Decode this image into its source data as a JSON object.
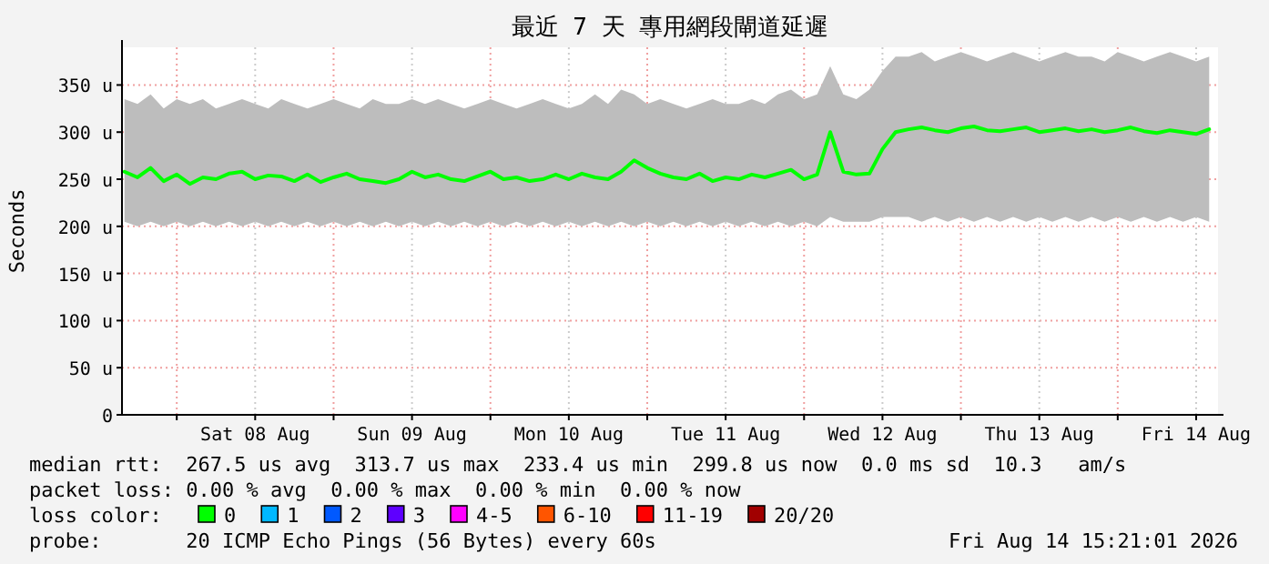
{
  "chart_data": {
    "type": "line",
    "title": "最近 7 天 專用網段閘道延遲",
    "ylabel": "Seconds",
    "legend_title": "loss color:",
    "legend": "bottom",
    "grid": true,
    "x": [
      "2026-08-07T16:00",
      "2026-08-07T18:00",
      "2026-08-07T20:00",
      "2026-08-07T22:00",
      "2026-08-08T00:00",
      "2026-08-08T02:00",
      "2026-08-08T04:00",
      "2026-08-08T06:00",
      "2026-08-08T08:00",
      "2026-08-08T10:00",
      "2026-08-08T12:00",
      "2026-08-08T14:00",
      "2026-08-08T16:00",
      "2026-08-08T18:00",
      "2026-08-08T20:00",
      "2026-08-08T22:00",
      "2026-08-09T00:00",
      "2026-08-09T02:00",
      "2026-08-09T04:00",
      "2026-08-09T06:00",
      "2026-08-09T08:00",
      "2026-08-09T10:00",
      "2026-08-09T12:00",
      "2026-08-09T14:00",
      "2026-08-09T16:00",
      "2026-08-09T18:00",
      "2026-08-09T20:00",
      "2026-08-09T22:00",
      "2026-08-10T00:00",
      "2026-08-10T02:00",
      "2026-08-10T04:00",
      "2026-08-10T06:00",
      "2026-08-10T08:00",
      "2026-08-10T10:00",
      "2026-08-10T12:00",
      "2026-08-10T14:00",
      "2026-08-10T16:00",
      "2026-08-10T18:00",
      "2026-08-10T20:00",
      "2026-08-10T22:00",
      "2026-08-11T00:00",
      "2026-08-11T02:00",
      "2026-08-11T04:00",
      "2026-08-11T06:00",
      "2026-08-11T08:00",
      "2026-08-11T10:00",
      "2026-08-11T12:00",
      "2026-08-11T14:00",
      "2026-08-11T16:00",
      "2026-08-11T18:00",
      "2026-08-11T20:00",
      "2026-08-11T22:00",
      "2026-08-12T00:00",
      "2026-08-12T02:00",
      "2026-08-12T04:00",
      "2026-08-12T06:00",
      "2026-08-12T08:00",
      "2026-08-12T10:00",
      "2026-08-12T12:00",
      "2026-08-12T14:00",
      "2026-08-12T16:00",
      "2026-08-12T18:00",
      "2026-08-12T20:00",
      "2026-08-12T22:00",
      "2026-08-13T00:00",
      "2026-08-13T02:00",
      "2026-08-13T04:00",
      "2026-08-13T06:00",
      "2026-08-13T08:00",
      "2026-08-13T10:00",
      "2026-08-13T12:00",
      "2026-08-13T14:00",
      "2026-08-13T16:00",
      "2026-08-13T18:00",
      "2026-08-13T20:00",
      "2026-08-13T22:00",
      "2026-08-14T00:00",
      "2026-08-14T02:00",
      "2026-08-14T04:00",
      "2026-08-14T06:00",
      "2026-08-14T08:00",
      "2026-08-14T10:00",
      "2026-08-14T12:00",
      "2026-08-14T14:00"
    ],
    "xlim": [
      "2026-08-07T15:37",
      "2026-08-14T15:21"
    ],
    "xticks": [
      {
        "value": "2026-08-08T00:00",
        "label": null
      },
      {
        "value": "2026-08-08T12:00",
        "label": "Sat 08 Aug"
      },
      {
        "value": "2026-08-09T00:00",
        "label": null
      },
      {
        "value": "2026-08-09T12:00",
        "label": "Sun 09 Aug"
      },
      {
        "value": "2026-08-10T00:00",
        "label": null
      },
      {
        "value": "2026-08-10T12:00",
        "label": "Mon 10 Aug"
      },
      {
        "value": "2026-08-11T00:00",
        "label": null
      },
      {
        "value": "2026-08-11T12:00",
        "label": "Tue 11 Aug"
      },
      {
        "value": "2026-08-12T00:00",
        "label": null
      },
      {
        "value": "2026-08-12T12:00",
        "label": "Wed 12 Aug"
      },
      {
        "value": "2026-08-13T00:00",
        "label": null
      },
      {
        "value": "2026-08-13T12:00",
        "label": "Thu 13 Aug"
      },
      {
        "value": "2026-08-14T00:00",
        "label": null
      },
      {
        "value": "2026-08-14T12:00",
        "label": "Fri 14 Aug"
      }
    ],
    "ylim": [
      0,
      390
    ],
    "yticks": [
      0,
      {
        "value": 50,
        "label": "50 u"
      },
      {
        "value": 100,
        "label": "100 u"
      },
      {
        "value": 150,
        "label": "150 u"
      },
      {
        "value": 200,
        "label": "200 u"
      },
      {
        "value": 250,
        "label": "250 u"
      },
      {
        "value": 300,
        "label": "300 u"
      },
      {
        "value": 350,
        "label": "350 u"
      }
    ],
    "series": [
      {
        "name": "0",
        "color": "#00ff00",
        "values": [
          258,
          252,
          262,
          248,
          255,
          245,
          252,
          250,
          256,
          258,
          250,
          254,
          253,
          248,
          255,
          247,
          252,
          256,
          250,
          248,
          246,
          250,
          258,
          252,
          255,
          250,
          248,
          253,
          258,
          250,
          252,
          248,
          250,
          255,
          250,
          256,
          252,
          250,
          258,
          270,
          262,
          256,
          252,
          250,
          256,
          248,
          252,
          250,
          255,
          252,
          256,
          260,
          250,
          255,
          300,
          258,
          255,
          256,
          282,
          300,
          303,
          305,
          302,
          300,
          304,
          306,
          302,
          301,
          303,
          305,
          300,
          302,
          304,
          301,
          303,
          300,
          302,
          305,
          301,
          299,
          302,
          300,
          298,
          303
        ],
        "lower": [
          205,
          200,
          205,
          200,
          205,
          200,
          205,
          200,
          205,
          200,
          205,
          200,
          205,
          200,
          205,
          200,
          205,
          200,
          205,
          200,
          205,
          200,
          205,
          200,
          205,
          200,
          205,
          200,
          205,
          200,
          205,
          200,
          205,
          200,
          205,
          200,
          205,
          200,
          205,
          200,
          205,
          200,
          205,
          200,
          205,
          200,
          205,
          200,
          205,
          200,
          205,
          200,
          205,
          200,
          210,
          205,
          205,
          205,
          210,
          210,
          210,
          205,
          210,
          205,
          210,
          205,
          210,
          205,
          210,
          205,
          210,
          205,
          210,
          205,
          210,
          205,
          210,
          205,
          210,
          205,
          210,
          205,
          210,
          205
        ],
        "upper": [
          335,
          330,
          340,
          325,
          335,
          330,
          335,
          325,
          330,
          335,
          330,
          325,
          335,
          330,
          325,
          330,
          335,
          330,
          325,
          335,
          330,
          330,
          335,
          330,
          335,
          330,
          325,
          330,
          335,
          330,
          325,
          330,
          335,
          330,
          325,
          330,
          340,
          330,
          345,
          340,
          330,
          335,
          330,
          325,
          330,
          335,
          330,
          330,
          335,
          330,
          340,
          345,
          335,
          340,
          370,
          340,
          335,
          345,
          365,
          380,
          380,
          385,
          375,
          380,
          385,
          380,
          375,
          380,
          385,
          380,
          375,
          380,
          385,
          380,
          380,
          375,
          385,
          380,
          375,
          380,
          385,
          380,
          375,
          380
        ]
      },
      {
        "name": "1",
        "color": "#00b8ff",
        "values": [
          null,
          null,
          null,
          null,
          null,
          null,
          null,
          null,
          null,
          null,
          null,
          null,
          null,
          null,
          null,
          null,
          null,
          null,
          null,
          null,
          null,
          null,
          null,
          null,
          null,
          null,
          null,
          null,
          null,
          null,
          null,
          null,
          null,
          null,
          null,
          null,
          null,
          null,
          null,
          null,
          null,
          null,
          null,
          null,
          null,
          null,
          null,
          null,
          null,
          null,
          null,
          null,
          null,
          null,
          null,
          null,
          null,
          null,
          null,
          null,
          null,
          null,
          null,
          null,
          null,
          null,
          null,
          null,
          null,
          null,
          null,
          null,
          null,
          null,
          null,
          null,
          null,
          null,
          null,
          null,
          null,
          null,
          null,
          null
        ]
      },
      {
        "name": "2",
        "color": "#0059ff",
        "values": [
          null,
          null,
          null,
          null,
          null,
          null,
          null,
          null,
          null,
          null,
          null,
          null,
          null,
          null,
          null,
          null,
          null,
          null,
          null,
          null,
          null,
          null,
          null,
          null,
          null,
          null,
          null,
          null,
          null,
          null,
          null,
          null,
          null,
          null,
          null,
          null,
          null,
          null,
          null,
          null,
          null,
          null,
          null,
          null,
          null,
          null,
          null,
          null,
          null,
          null,
          null,
          null,
          null,
          null,
          null,
          null,
          null,
          null,
          null,
          null,
          null,
          null,
          null,
          null,
          null,
          null,
          null,
          null,
          null,
          null,
          null,
          null,
          null,
          null,
          null,
          null,
          null,
          null,
          null,
          null,
          null,
          null,
          null,
          null
        ]
      },
      {
        "name": "3",
        "color": "#5e00ff",
        "values": [
          null,
          null,
          null,
          null,
          null,
          null,
          null,
          null,
          null,
          null,
          null,
          null,
          null,
          null,
          null,
          null,
          null,
          null,
          null,
          null,
          null,
          null,
          null,
          null,
          null,
          null,
          null,
          null,
          null,
          null,
          null,
          null,
          null,
          null,
          null,
          null,
          null,
          null,
          null,
          null,
          null,
          null,
          null,
          null,
          null,
          null,
          null,
          null,
          null,
          null,
          null,
          null,
          null,
          null,
          null,
          null,
          null,
          null,
          null,
          null,
          null,
          null,
          null,
          null,
          null,
          null,
          null,
          null,
          null,
          null,
          null,
          null,
          null,
          null,
          null,
          null,
          null,
          null,
          null,
          null,
          null,
          null,
          null,
          null
        ]
      },
      {
        "name": "4-5",
        "color": "#ff00ff",
        "values": [
          null,
          null,
          null,
          null,
          null,
          null,
          null,
          null,
          null,
          null,
          null,
          null,
          null,
          null,
          null,
          null,
          null,
          null,
          null,
          null,
          null,
          null,
          null,
          null,
          null,
          null,
          null,
          null,
          null,
          null,
          null,
          null,
          null,
          null,
          null,
          null,
          null,
          null,
          null,
          null,
          null,
          null,
          null,
          null,
          null,
          null,
          null,
          null,
          null,
          null,
          null,
          null,
          null,
          null,
          null,
          null,
          null,
          null,
          null,
          null,
          null,
          null,
          null,
          null,
          null,
          null,
          null,
          null,
          null,
          null,
          null,
          null,
          null,
          null,
          null,
          null,
          null,
          null,
          null,
          null,
          null,
          null,
          null,
          null
        ]
      },
      {
        "name": "6-10",
        "color": "#ff5500",
        "values": [
          null,
          null,
          null,
          null,
          null,
          null,
          null,
          null,
          null,
          null,
          null,
          null,
          null,
          null,
          null,
          null,
          null,
          null,
          null,
          null,
          null,
          null,
          null,
          null,
          null,
          null,
          null,
          null,
          null,
          null,
          null,
          null,
          null,
          null,
          null,
          null,
          null,
          null,
          null,
          null,
          null,
          null,
          null,
          null,
          null,
          null,
          null,
          null,
          null,
          null,
          null,
          null,
          null,
          null,
          null,
          null,
          null,
          null,
          null,
          null,
          null,
          null,
          null,
          null,
          null,
          null,
          null,
          null,
          null,
          null,
          null,
          null,
          null,
          null,
          null,
          null,
          null,
          null,
          null,
          null,
          null,
          null,
          null,
          null
        ]
      },
      {
        "name": "11-19",
        "color": "#ff0000",
        "values": [
          null,
          null,
          null,
          null,
          null,
          null,
          null,
          null,
          null,
          null,
          null,
          null,
          null,
          null,
          null,
          null,
          null,
          null,
          null,
          null,
          null,
          null,
          null,
          null,
          null,
          null,
          null,
          null,
          null,
          null,
          null,
          null,
          null,
          null,
          null,
          null,
          null,
          null,
          null,
          null,
          null,
          null,
          null,
          null,
          null,
          null,
          null,
          null,
          null,
          null,
          null,
          null,
          null,
          null,
          null,
          null,
          null,
          null,
          null,
          null,
          null,
          null,
          null,
          null,
          null,
          null,
          null,
          null,
          null,
          null,
          null,
          null,
          null,
          null,
          null,
          null,
          null,
          null,
          null,
          null,
          null,
          null,
          null,
          null
        ]
      },
      {
        "name": "20/20",
        "color": "#a10000",
        "values": [
          null,
          null,
          null,
          null,
          null,
          null,
          null,
          null,
          null,
          null,
          null,
          null,
          null,
          null,
          null,
          null,
          null,
          null,
          null,
          null,
          null,
          null,
          null,
          null,
          null,
          null,
          null,
          null,
          null,
          null,
          null,
          null,
          null,
          null,
          null,
          null,
          null,
          null,
          null,
          null,
          null,
          null,
          null,
          null,
          null,
          null,
          null,
          null,
          null,
          null,
          null,
          null,
          null,
          null,
          null,
          null,
          null,
          null,
          null,
          null,
          null,
          null,
          null,
          null,
          null,
          null,
          null,
          null,
          null,
          null,
          null,
          null,
          null,
          null,
          null,
          null,
          null,
          null,
          null,
          null,
          null,
          null,
          null,
          null
        ]
      }
    ],
    "annotations": [
      "median rtt:  267.5 us avg  313.7 us max  233.4 us min  299.8 us now  0.0 ms sd  10.3   am/s",
      "packet loss: 0.00 % avg  0.00 % max  0.00 % min  0.00 % now",
      "probe:       20 ICMP Echo Pings (56 Bytes) every 60s",
      "Fri Aug 14 15:21:01 2026"
    ]
  }
}
